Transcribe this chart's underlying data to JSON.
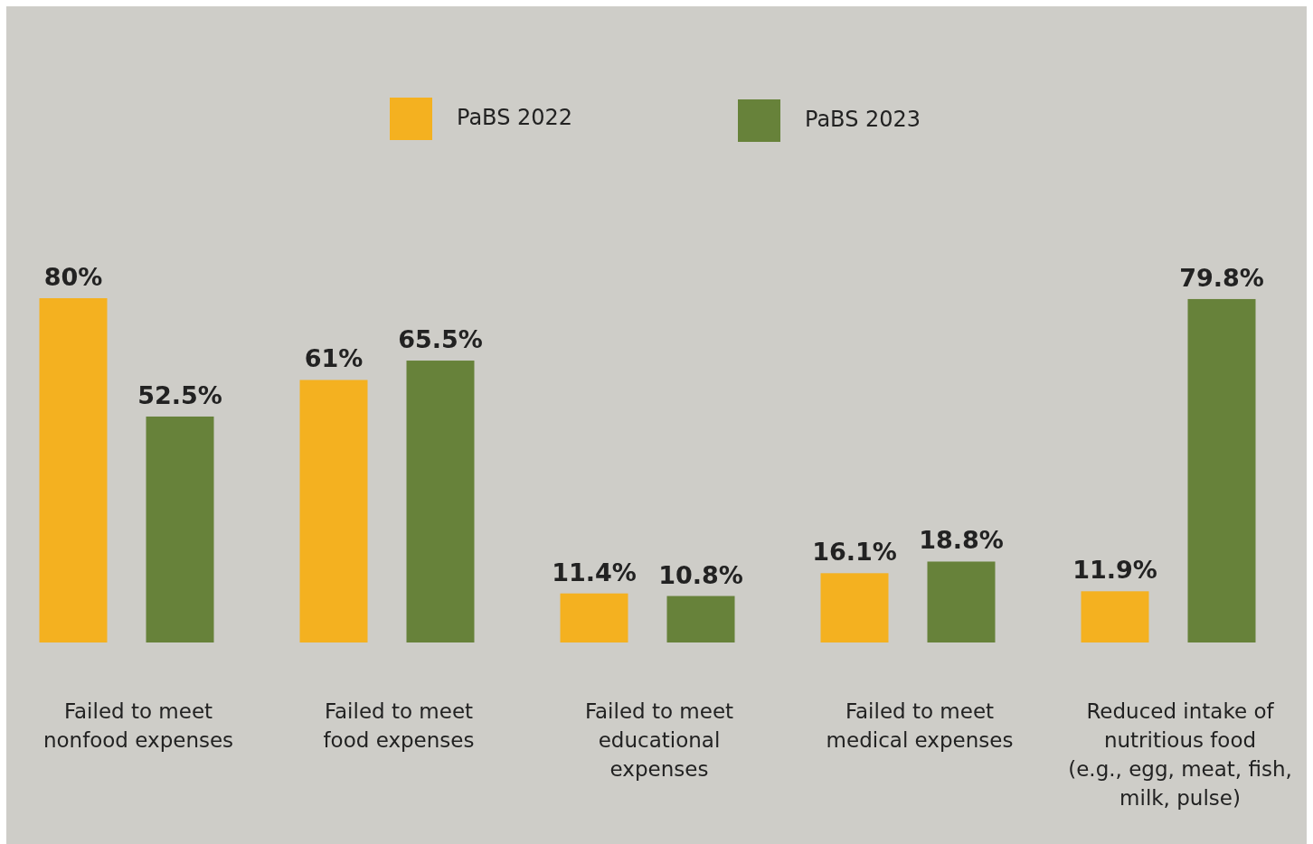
{
  "chart_data": {
    "type": "bar",
    "categories": [
      "Failed to meet\nnonfood expenses",
      "Failed to meet\nfood expenses",
      "Failed to meet\neducational\nexpenses",
      "Failed to meet\nmedical expenses",
      "Reduced intake of\nnutritious food\n(e.g., egg, meat, fish,\nmilk, pulse)"
    ],
    "series": [
      {
        "name": "PaBS 2022",
        "color": "#f4b120",
        "values": [
          80,
          61,
          11.4,
          16.1,
          11.9
        ],
        "value_labels": [
          "80%",
          "61%",
          "11.4%",
          "16.1%",
          "11.9%"
        ]
      },
      {
        "name": "PaBS 2023",
        "color": "#67823a",
        "values": [
          52.5,
          65.5,
          10.8,
          18.8,
          79.8
        ],
        "value_labels": [
          "52.5%",
          "65.5%",
          "10.8%",
          "18.8%",
          "79.8%"
        ]
      }
    ],
    "legend": "top"
  }
}
